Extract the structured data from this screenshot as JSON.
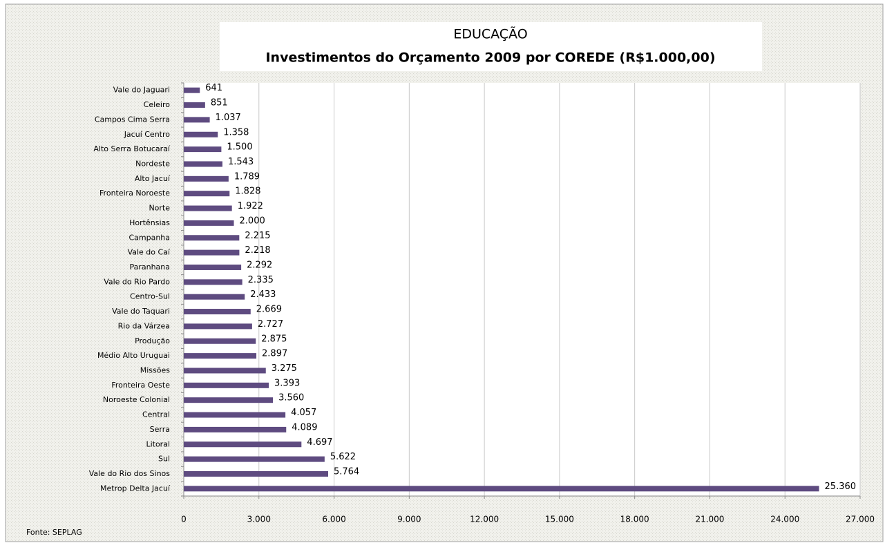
{
  "chart_data": {
    "type": "barh",
    "title": "EDUCAÇÃO",
    "subtitle": "Investimentos do Orçamento 2009 por COREDE (R$1.000,00)",
    "source": "Fonte:  SEPLAG",
    "categories": [
      "Vale do Jaguari",
      "Celeiro",
      "Campos Cima Serra",
      "Jacuí Centro",
      "Alto Serra Botucaraí",
      "Nordeste",
      "Alto Jacuí",
      "Fronteira Noroeste",
      "Norte",
      "Hortênsias",
      "Campanha",
      "Vale do Caí",
      "Paranhana",
      "Vale do Rio Pardo",
      "Centro-Sul",
      "Vale do Taquari",
      "Rio da Várzea",
      "Produção",
      "Médio Alto Uruguai",
      "Missões",
      "Fronteira Oeste",
      "Noroeste Colonial",
      "Central",
      "Serra",
      "Litoral",
      "Sul",
      "Vale do Rio dos Sinos",
      "Metrop Delta Jacuí"
    ],
    "values": [
      641,
      851,
      1037,
      1358,
      1500,
      1543,
      1789,
      1828,
      1922,
      2000,
      2215,
      2218,
      2292,
      2335,
      2433,
      2669,
      2727,
      2875,
      2897,
      3275,
      3393,
      3560,
      4057,
      4089,
      4697,
      5622,
      5764,
      25360
    ],
    "value_labels": [
      "641",
      "851",
      "1.037",
      "1.358",
      "1.500",
      "1.543",
      "1.789",
      "1.828",
      "1.922",
      "2.000",
      "2.215",
      "2.218",
      "2.292",
      "2.335",
      "2.433",
      "2.669",
      "2.727",
      "2.875",
      "2.897",
      "3.275",
      "3.393",
      "3.560",
      "4.057",
      "4.089",
      "4.697",
      "5.622",
      "5.764",
      "25.360"
    ],
    "color": "#5e4b80",
    "xlim": [
      0,
      27000
    ],
    "xticks": [
      0,
      {
        "value": 3000,
        "label": "3.000"
      },
      {
        "value": 6000,
        "label": "6.000"
      },
      {
        "value": 9000,
        "label": "9.000"
      },
      {
        "value": 12000,
        "label": "12.000"
      },
      {
        "value": 15000,
        "label": "15.000"
      },
      {
        "value": 18000,
        "label": "18.000"
      },
      {
        "value": 21000,
        "label": "21.000"
      },
      {
        "value": 24000,
        "label": "24.000"
      },
      {
        "value": 27000,
        "label": "27.000"
      }
    ],
    "grid": true
  }
}
